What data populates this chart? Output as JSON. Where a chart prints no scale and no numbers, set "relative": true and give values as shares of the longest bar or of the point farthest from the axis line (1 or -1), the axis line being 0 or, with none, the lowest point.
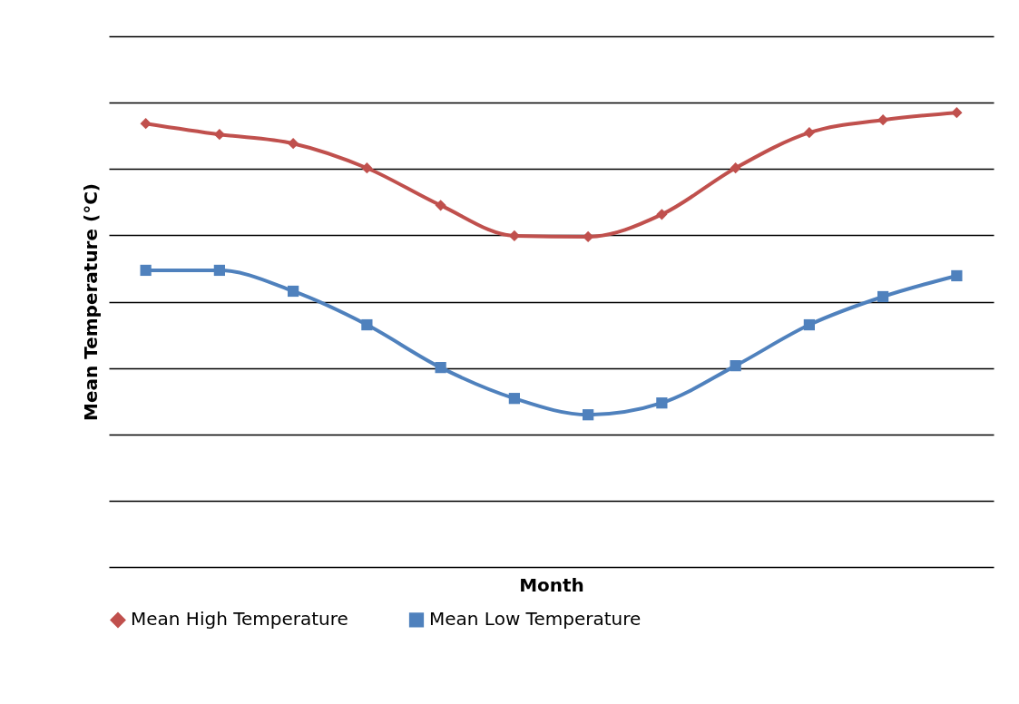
{
  "chart_data": {
    "type": "line",
    "relative": true,
    "xlabel": "Month",
    "ylabel": "Mean Temperature (°C)",
    "categories": [
      null,
      null,
      null,
      null,
      null,
      null,
      null,
      null,
      null,
      null,
      null,
      null
    ],
    "grid": "y",
    "legend": "bottom",
    "line_style": "solid",
    "series": [
      {
        "name": "Mean High Temperature",
        "color": "#c0504d",
        "marker": "diamond",
        "values": [
          0.976,
          0.952,
          0.932,
          0.878,
          0.796,
          0.729,
          0.727,
          0.776,
          0.878,
          0.956,
          0.984,
          1.0
        ]
      },
      {
        "name": "Mean Low Temperature",
        "color": "#4f81bd",
        "marker": "square",
        "values": [
          0.653,
          0.653,
          0.607,
          0.533,
          0.439,
          0.371,
          0.335,
          0.361,
          0.443,
          0.533,
          0.595,
          0.641
        ]
      }
    ]
  }
}
